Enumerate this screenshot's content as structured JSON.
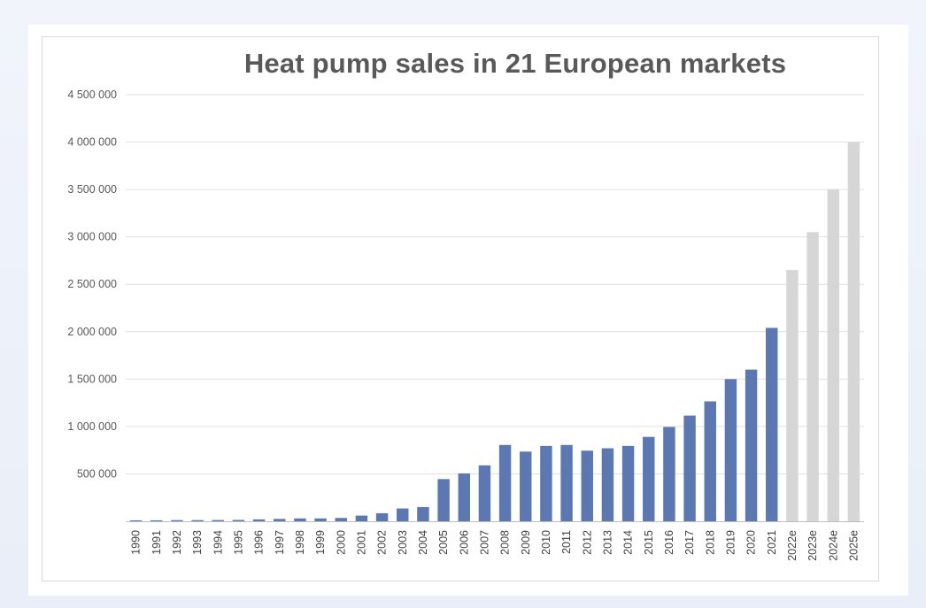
{
  "chart_data": {
    "type": "bar",
    "title": "Heat pump sales in 21 European markets",
    "xlabel": "",
    "ylabel": "",
    "ylim": [
      0,
      4500000
    ],
    "yticks": [
      500000,
      1000000,
      1500000,
      2000000,
      2500000,
      3000000,
      3500000,
      4000000,
      4500000
    ],
    "ytick_labels": [
      "500 000",
      "1 000 000",
      "1 500 000",
      "2 000 000",
      "2 500 000",
      "3 000 000",
      "3 500 000",
      "4 000 000",
      "4 500 000"
    ],
    "grid": true,
    "legend": "none",
    "categories": [
      "1990",
      "1991",
      "1992",
      "1993",
      "1994",
      "1995",
      "1996",
      "1997",
      "1998",
      "1999",
      "2000",
      "2001",
      "2002",
      "2003",
      "2004",
      "2005",
      "2006",
      "2007",
      "2008",
      "2009",
      "2010",
      "2011",
      "2012",
      "2013",
      "2014",
      "2015",
      "2016",
      "2017",
      "2018",
      "2019",
      "2020",
      "2021",
      "2022e",
      "2023e",
      "2024e",
      "2025e"
    ],
    "values": [
      10000,
      10000,
      12000,
      12000,
      13000,
      14000,
      20000,
      25000,
      30000,
      30000,
      35000,
      60000,
      85000,
      135000,
      150000,
      445000,
      505000,
      590000,
      805000,
      735000,
      795000,
      805000,
      745000,
      770000,
      795000,
      890000,
      995000,
      1115000,
      1265000,
      1500000,
      1600000,
      2040000,
      2650000,
      3050000,
      3500000,
      4000000
    ],
    "estimated_from_index": 32,
    "colors": {
      "actual": "#5b78b3",
      "estimate": "#d6d6d6",
      "grid": "#e0e0e0",
      "axis": "#bfbfbf"
    }
  }
}
